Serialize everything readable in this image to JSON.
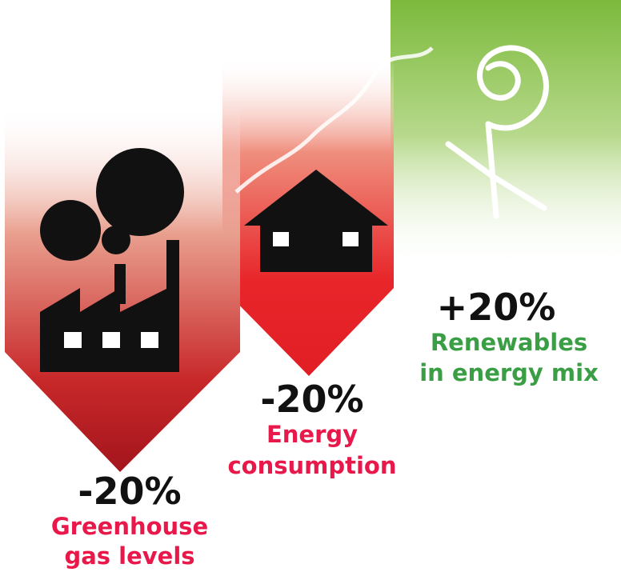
{
  "items": [
    {
      "value": "-20%",
      "label": [
        "Greenhouse",
        "gas levels"
      ]
    },
    {
      "value": "-20%",
      "label": [
        "Energy",
        "consumption"
      ]
    },
    {
      "value": "+20%",
      "label": [
        "Renewables",
        "in energy mix"
      ]
    }
  ]
}
